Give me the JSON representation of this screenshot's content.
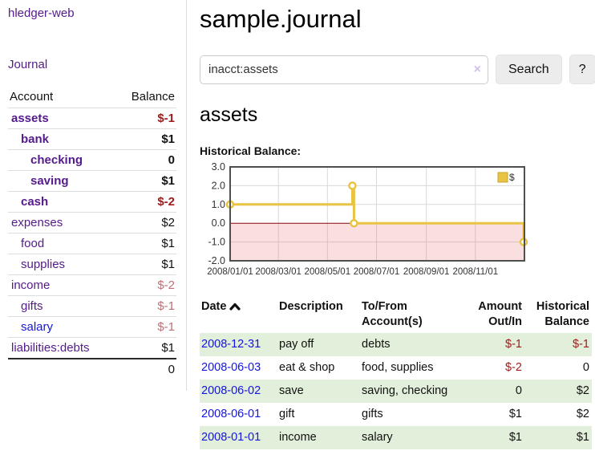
{
  "app": {
    "title": "hledger-web",
    "nav_journal": "Journal"
  },
  "sidebar": {
    "headers": {
      "account": "Account",
      "balance": "Balance"
    },
    "accounts": [
      {
        "name": "assets",
        "balance": "$-1"
      },
      {
        "name": "bank",
        "balance": "$1"
      },
      {
        "name": "checking",
        "balance": "0"
      },
      {
        "name": "saving",
        "balance": "$1"
      },
      {
        "name": "cash",
        "balance": "$-2"
      },
      {
        "name": "expenses",
        "balance": "$2"
      },
      {
        "name": "food",
        "balance": "$1"
      },
      {
        "name": "supplies",
        "balance": "$1"
      },
      {
        "name": "income",
        "balance": "$-2"
      },
      {
        "name": "gifts",
        "balance": "$-1"
      },
      {
        "name": "salary",
        "balance": "$-1"
      },
      {
        "name": "liabilities:debts",
        "balance": "$1"
      }
    ],
    "total": "0"
  },
  "main": {
    "title": "sample.journal",
    "search": {
      "value": "inacct:assets",
      "clear_icon": "×",
      "button_label": "Search",
      "help_label": "?"
    },
    "account_heading": "assets",
    "chart_label": "Historical Balance:"
  },
  "chart_data": {
    "type": "line",
    "style": "step-after",
    "title": "Historical Balance",
    "series": [
      {
        "name": "$",
        "color": "#e9c343",
        "points": [
          [
            "2008-01-01",
            1
          ],
          [
            "2008-06-01",
            2
          ],
          [
            "2008-06-03",
            0
          ],
          [
            "2008-12-31",
            -1
          ]
        ]
      }
    ],
    "ylim": [
      -2,
      3
    ],
    "yticks": [
      3.0,
      2.0,
      1.0,
      0.0,
      -1.0,
      -2.0
    ],
    "ytick_labels": [
      "3.0",
      "2.0",
      "1.0",
      "0.0",
      "-1.0",
      "-2.0"
    ],
    "xticks": [
      "2008/01/01",
      "2008/03/01",
      "2008/05/01",
      "2008/07/01",
      "2008/09/01",
      "2008/11/01"
    ],
    "x_start": "2008-01-01",
    "x_days": 366,
    "grid": true,
    "legend_position": "top-right",
    "negative_fill": "rgba(224, 80, 80, 0.18)",
    "zero_line_color": "#8b1111",
    "grid_color": "#d9d9d9",
    "border_color": "#4f4f4f"
  },
  "register": {
    "headers": {
      "date": "Date",
      "description": "Description",
      "tofrom": "To/From Account(s)",
      "amount": "Amount Out/In",
      "balance": "Historical Balance"
    },
    "rows": [
      {
        "date": "2008-12-31",
        "description": "pay off",
        "accounts": "debts",
        "amount": "$-1",
        "balance": "$-1"
      },
      {
        "date": "2008-06-03",
        "description": "eat & shop",
        "accounts": "food, supplies",
        "amount": "$-2",
        "balance": "0"
      },
      {
        "date": "2008-06-02",
        "description": "save",
        "accounts": "saving, checking",
        "amount": "0",
        "balance": "$2"
      },
      {
        "date": "2008-06-01",
        "description": "gift",
        "accounts": "gifts",
        "amount": "$1",
        "balance": "$2"
      },
      {
        "date": "2008-01-01",
        "description": "income",
        "accounts": "salary",
        "amount": "$1",
        "balance": "$1"
      }
    ]
  }
}
